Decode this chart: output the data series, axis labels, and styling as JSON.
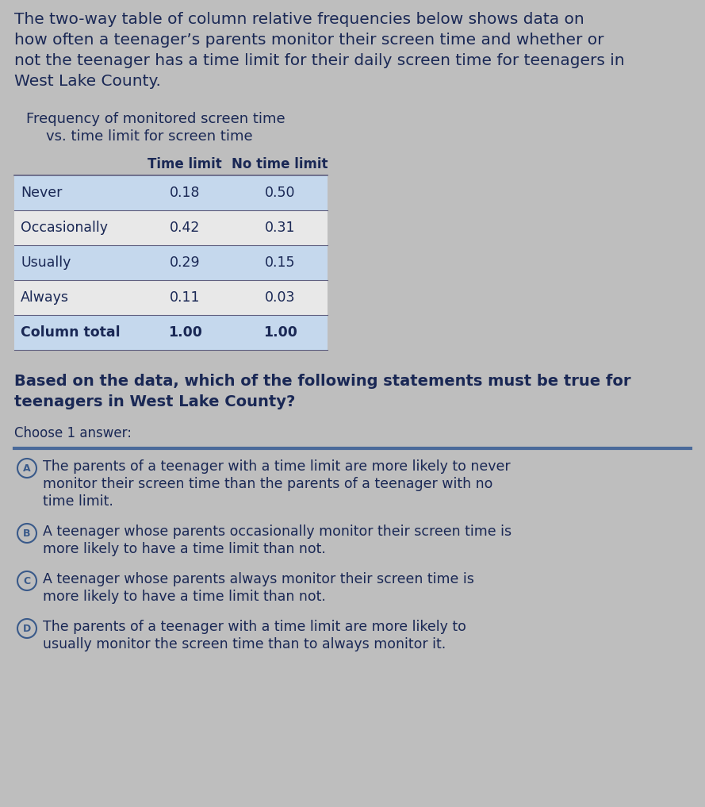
{
  "intro_text_lines": [
    "The two-way table of column relative frequencies below shows data on",
    "how often a teenager’s parents monitor their screen time and whether or",
    "not the teenager has a time limit for their daily screen time for teenagers in",
    "West Lake County."
  ],
  "table_title_line1": "Frequency of monitored screen time",
  "table_title_line2": "vs. time limit for screen time",
  "col_headers": [
    "Time limit",
    "No time limit"
  ],
  "row_labels": [
    "Never",
    "Occasionally",
    "Usually",
    "Always",
    "Column total"
  ],
  "data": [
    [
      0.18,
      0.5
    ],
    [
      0.42,
      0.31
    ],
    [
      0.29,
      0.15
    ],
    [
      0.11,
      0.03
    ],
    [
      1.0,
      1.0
    ]
  ],
  "question_text_lines": [
    "Based on the data, which of the following statements must be true for",
    "teenagers in West Lake County?"
  ],
  "choose_text": "Choose 1 answer:",
  "options": [
    {
      "letter": "A",
      "lines": [
        "The parents of a teenager with a time limit are more likely to never",
        "monitor their screen time than the parents of a teenager with no",
        "time limit."
      ]
    },
    {
      "letter": "B",
      "lines": [
        "A teenager whose parents occasionally monitor their screen time is",
        "more likely to have a time limit than not."
      ]
    },
    {
      "letter": "C",
      "lines": [
        "A teenager whose parents always monitor their screen time is",
        "more likely to have a time limit than not."
      ]
    },
    {
      "letter": "D",
      "lines": [
        "The parents of a teenager with a time limit are more likely to",
        "usually monitor the screen time than to always monitor it."
      ]
    }
  ],
  "bg_color": "#bebebe",
  "table_row_bg_odd": "#c5d8ed",
  "table_row_bg_even": "#e8e8e8",
  "table_last_row_bg": "#c5d8ed",
  "text_color": "#1a2855",
  "option_circle_color": "#3a5a8a",
  "separator_color": "#4a6a9a",
  "intro_font_size": 14.5,
  "table_title_font_size": 13,
  "table_font_size": 12.5,
  "question_font_size": 14,
  "option_font_size": 12.5,
  "choose_font_size": 12
}
